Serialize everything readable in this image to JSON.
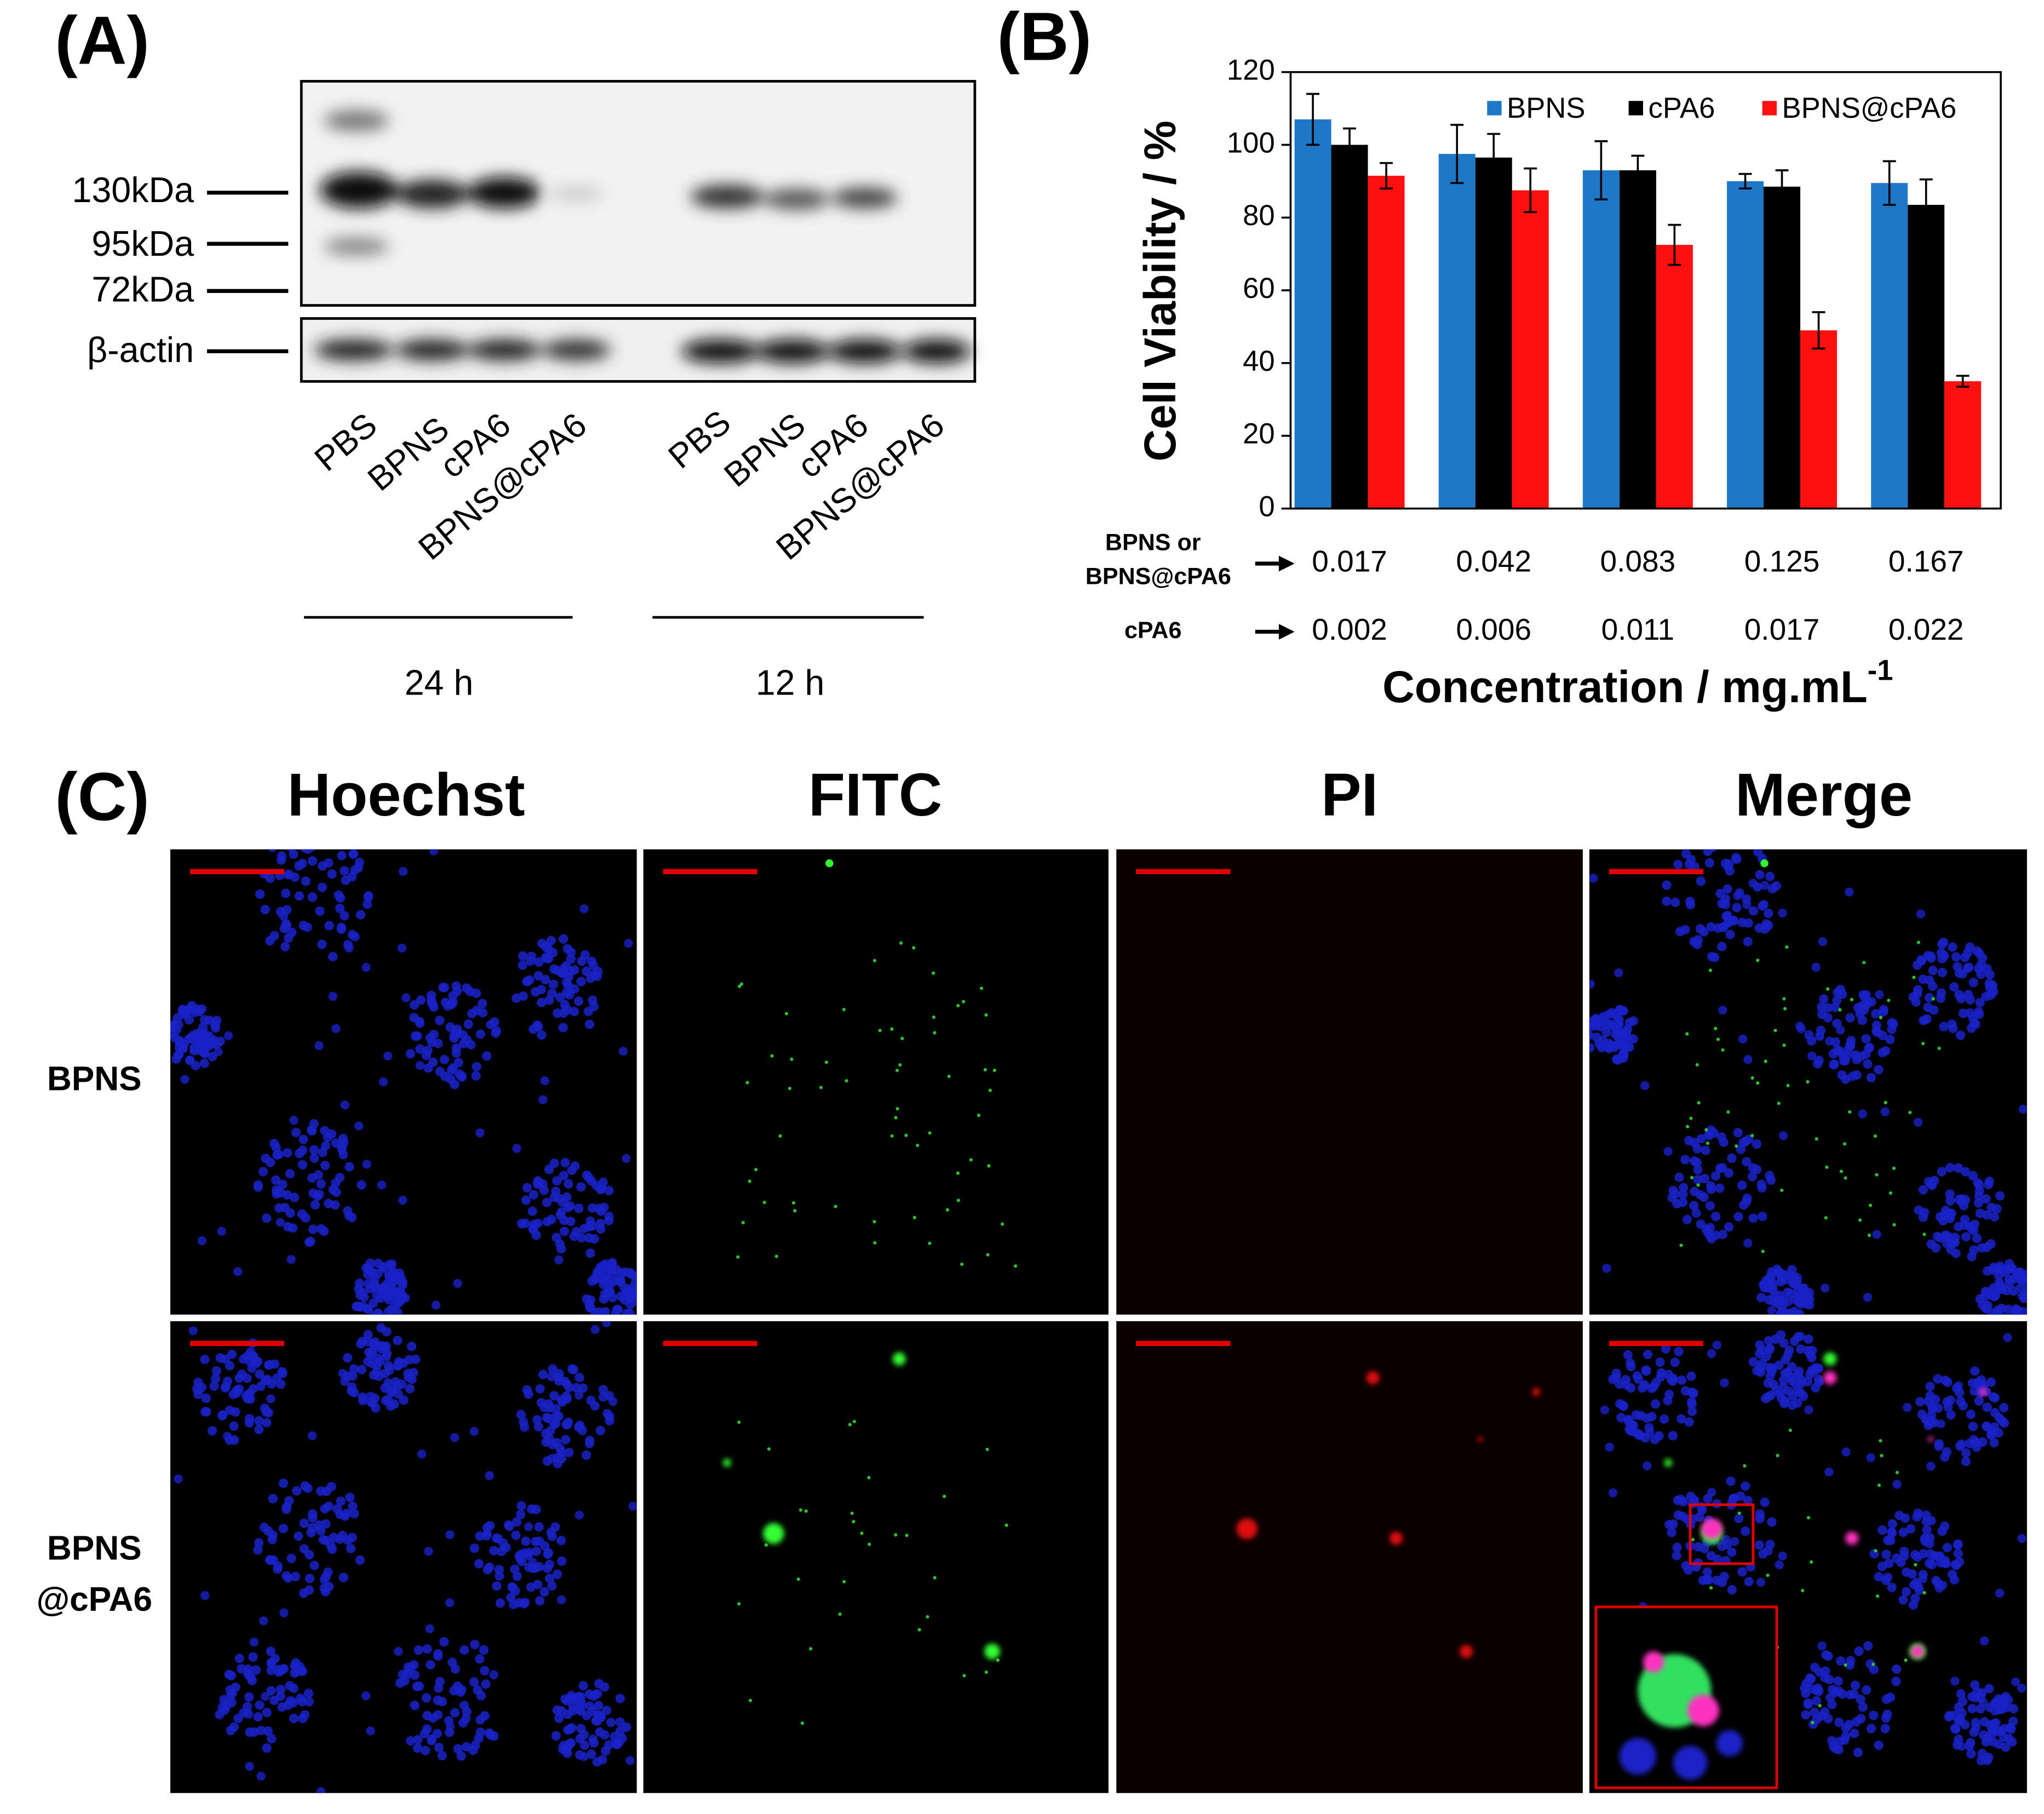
{
  "panel_a": {
    "label": "(A)",
    "markers": [
      "130kDa",
      "95kDa",
      "72kDa",
      "β-actin"
    ],
    "lanes": [
      "PBS",
      "BPNS",
      "cPA6",
      "BPNS@cPA6",
      "PBS",
      "BPNS",
      "cPA6",
      "BPNS@cPA6"
    ],
    "groups": [
      "24 h",
      "12 h"
    ]
  },
  "chart_data": {
    "type": "bar",
    "panel_label": "(B)",
    "y_label": "Cell Viability / %",
    "x_label": "Concentration / mg.mL",
    "x_label_sup": "-1",
    "categories_row_label": [
      "BPNS or",
      "BPNS@cPA6"
    ],
    "categories": [
      "0.017",
      "0.042",
      "0.083",
      "0.125",
      "0.167"
    ],
    "categories_2_row_label": [
      "cPA6"
    ],
    "categories_2": [
      "0.002",
      "0.006",
      "0.011",
      "0.017",
      "0.022"
    ],
    "series": [
      {
        "name": "BPNS",
        "color": "#1f77c8",
        "values": [
          107,
          97.5,
          93,
          90,
          89.5
        ],
        "errors": [
          7,
          8,
          8,
          2,
          6
        ]
      },
      {
        "name": "cPA6",
        "color": "#000000",
        "values": [
          100,
          96.5,
          93,
          88.5,
          83.5
        ],
        "errors": [
          4.5,
          6.5,
          4,
          4.5,
          7
        ]
      },
      {
        "name": "BPNS@cPA6",
        "color": "#ff1010",
        "values": [
          91.5,
          87.5,
          72.5,
          49,
          35
        ],
        "errors": [
          3.5,
          6,
          5.5,
          5,
          1.5
        ]
      }
    ],
    "ylim": [
      0,
      120
    ],
    "yticks": [
      0,
      20,
      40,
      60,
      80,
      100,
      120
    ],
    "legend": "top"
  },
  "panel_c": {
    "label": "(C)",
    "columns": [
      "Hoechst",
      "FITC",
      "PI",
      "Merge"
    ],
    "rows": [
      [
        "BPNS"
      ],
      [
        "BPNS",
        "@cPA6"
      ]
    ]
  }
}
